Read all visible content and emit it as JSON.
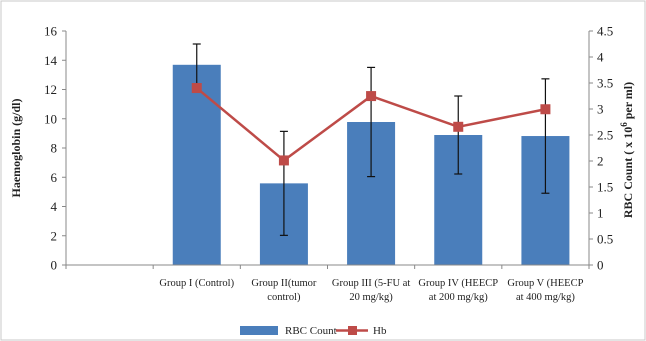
{
  "chart_data": {
    "type": "bar+line",
    "categories": [
      "",
      [
        "Group I (Control)"
      ],
      [
        "Group II(tumor",
        "control)"
      ],
      [
        "Group III (5-FU at",
        "20 mg/kg)"
      ],
      [
        "Group IV (HEECP",
        "at 200 mg/kg)"
      ],
      [
        "Group V (HEECP",
        "at 400 mg/kg)"
      ]
    ],
    "series": [
      {
        "name": "RBC Count",
        "type": "bar",
        "axis": "right",
        "color": "#4a7ebb",
        "values": [
          null,
          3.85,
          1.57,
          2.75,
          2.5,
          2.48
        ],
        "error": [
          null,
          0.4,
          1.0,
          1.05,
          0.75,
          1.1
        ]
      },
      {
        "name": "Hb",
        "type": "line",
        "axis": "left",
        "color": "#be4b48",
        "values": [
          null,
          12.1,
          7.15,
          11.55,
          9.45,
          10.65
        ]
      }
    ],
    "ylabel_left": "Haemoglobin (g/dl)",
    "ylabel_right_parts": [
      "RBC Count  ( x 10",
      "6",
      " per ml)"
    ],
    "ylim_left": [
      0,
      16
    ],
    "yticks_left": [
      "0",
      "2",
      "4",
      "6",
      "8",
      "10",
      "12",
      "14",
      "16"
    ],
    "ylim_right": [
      0,
      4.5
    ],
    "yticks_right": [
      "0",
      "0.5",
      "1",
      "1.5",
      "2",
      "2.5",
      "3",
      "3.5",
      "4",
      "4.5"
    ],
    "grid": false,
    "legend_position": "bottom"
  }
}
